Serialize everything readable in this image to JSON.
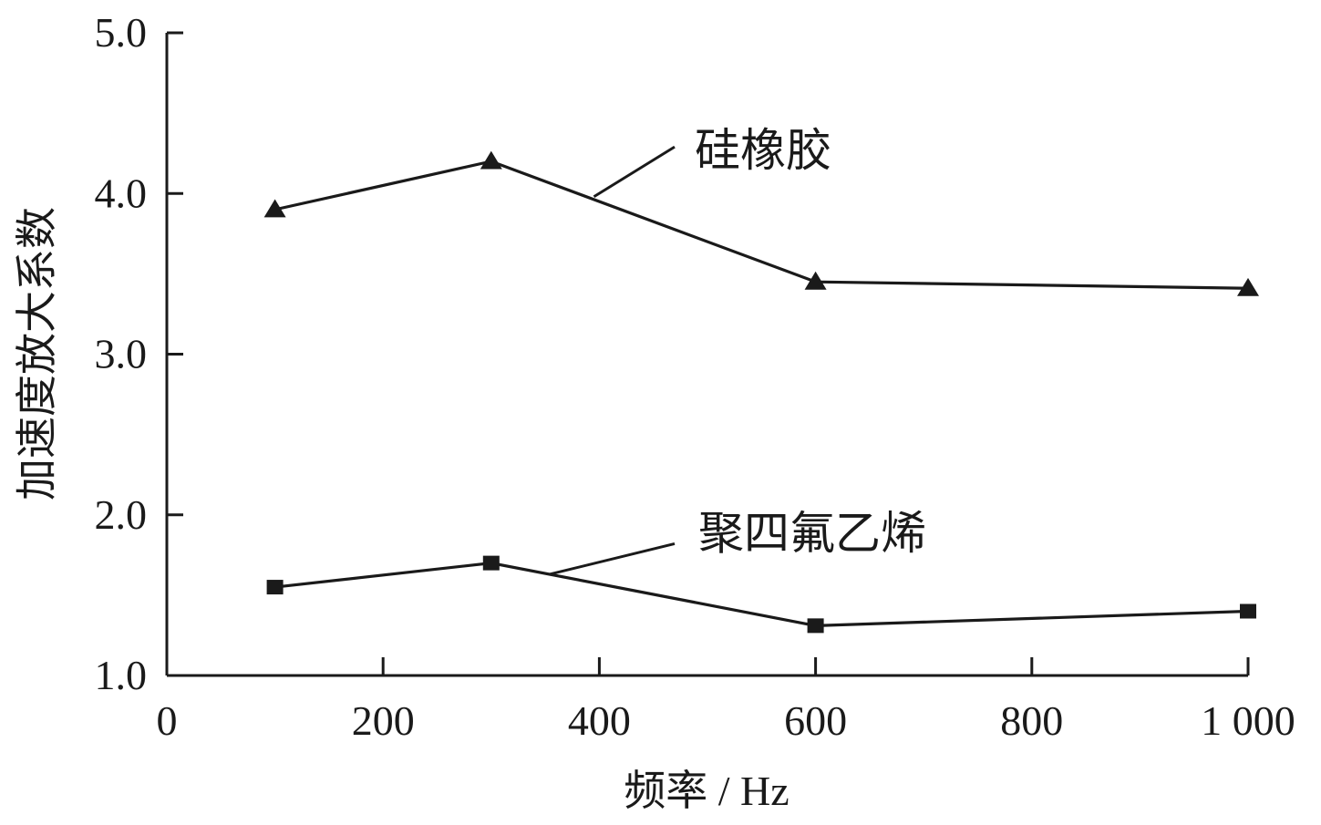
{
  "chart_data": {
    "type": "line",
    "xlabel": "频率 / Hz",
    "ylabel": "加速度放大系数",
    "xlim": [
      0,
      1000
    ],
    "ylim": [
      1.0,
      5.0
    ],
    "x_ticks": [
      0,
      200,
      400,
      600,
      800,
      1000
    ],
    "x_tick_labels": [
      "0",
      "200",
      "400",
      "600",
      "800",
      "1 000"
    ],
    "y_ticks": [
      1.0,
      2.0,
      3.0,
      4.0,
      5.0
    ],
    "y_tick_labels": [
      "1.0",
      "2.0",
      "3.0",
      "4.0",
      "5.0"
    ],
    "grid": false,
    "legend": "none",
    "series": [
      {
        "name": "硅橡胶",
        "marker": "triangle",
        "color": "#1a1a1a",
        "x": [
          100,
          300,
          600,
          1000
        ],
        "y": [
          3.9,
          4.2,
          3.45,
          3.41
        ]
      },
      {
        "name": "聚四氟乙烯",
        "marker": "square",
        "color": "#1a1a1a",
        "x": [
          100,
          300,
          600,
          1000
        ],
        "y": [
          1.55,
          1.7,
          1.31,
          1.4
        ]
      }
    ]
  }
}
